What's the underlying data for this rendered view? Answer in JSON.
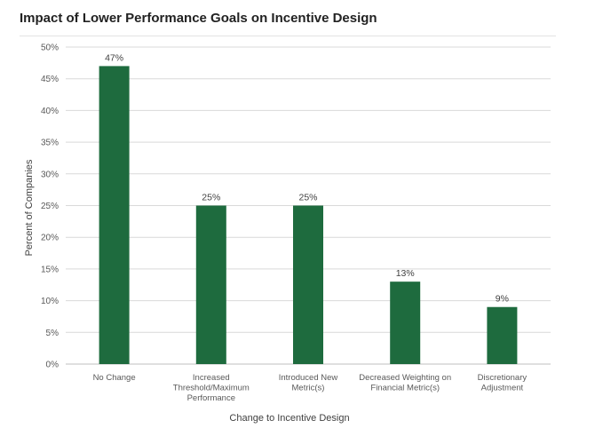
{
  "chart_data": {
    "type": "bar",
    "title": "Impact of Lower Performance Goals on Incentive Design",
    "xlabel": "Change to Incentive Design",
    "ylabel": "Percent of Companies",
    "categories": [
      [
        "No Change"
      ],
      [
        "Increased",
        "Threshold/Maximum",
        "Performance"
      ],
      [
        "Introduced New",
        "Metric(s)"
      ],
      [
        "Decreased Weighting on",
        "Financial Metric(s)"
      ],
      [
        "Discretionary",
        "Adjustment"
      ]
    ],
    "values": [
      47,
      25,
      25,
      13,
      9
    ],
    "data_labels": [
      "47%",
      "25%",
      "25%",
      "13%",
      "9%"
    ],
    "ylim": [
      0,
      50
    ],
    "y_ticks": [
      "0%",
      "5%",
      "10%",
      "15%",
      "20%",
      "25%",
      "30%",
      "35%",
      "40%",
      "45%",
      "50%"
    ],
    "y_tick_values": [
      0,
      5,
      10,
      15,
      20,
      25,
      30,
      35,
      40,
      45,
      50
    ],
    "grid": true,
    "legend": "none",
    "colors": {
      "bar": "#1e6b3e",
      "grid": "#d9d9d9"
    }
  }
}
